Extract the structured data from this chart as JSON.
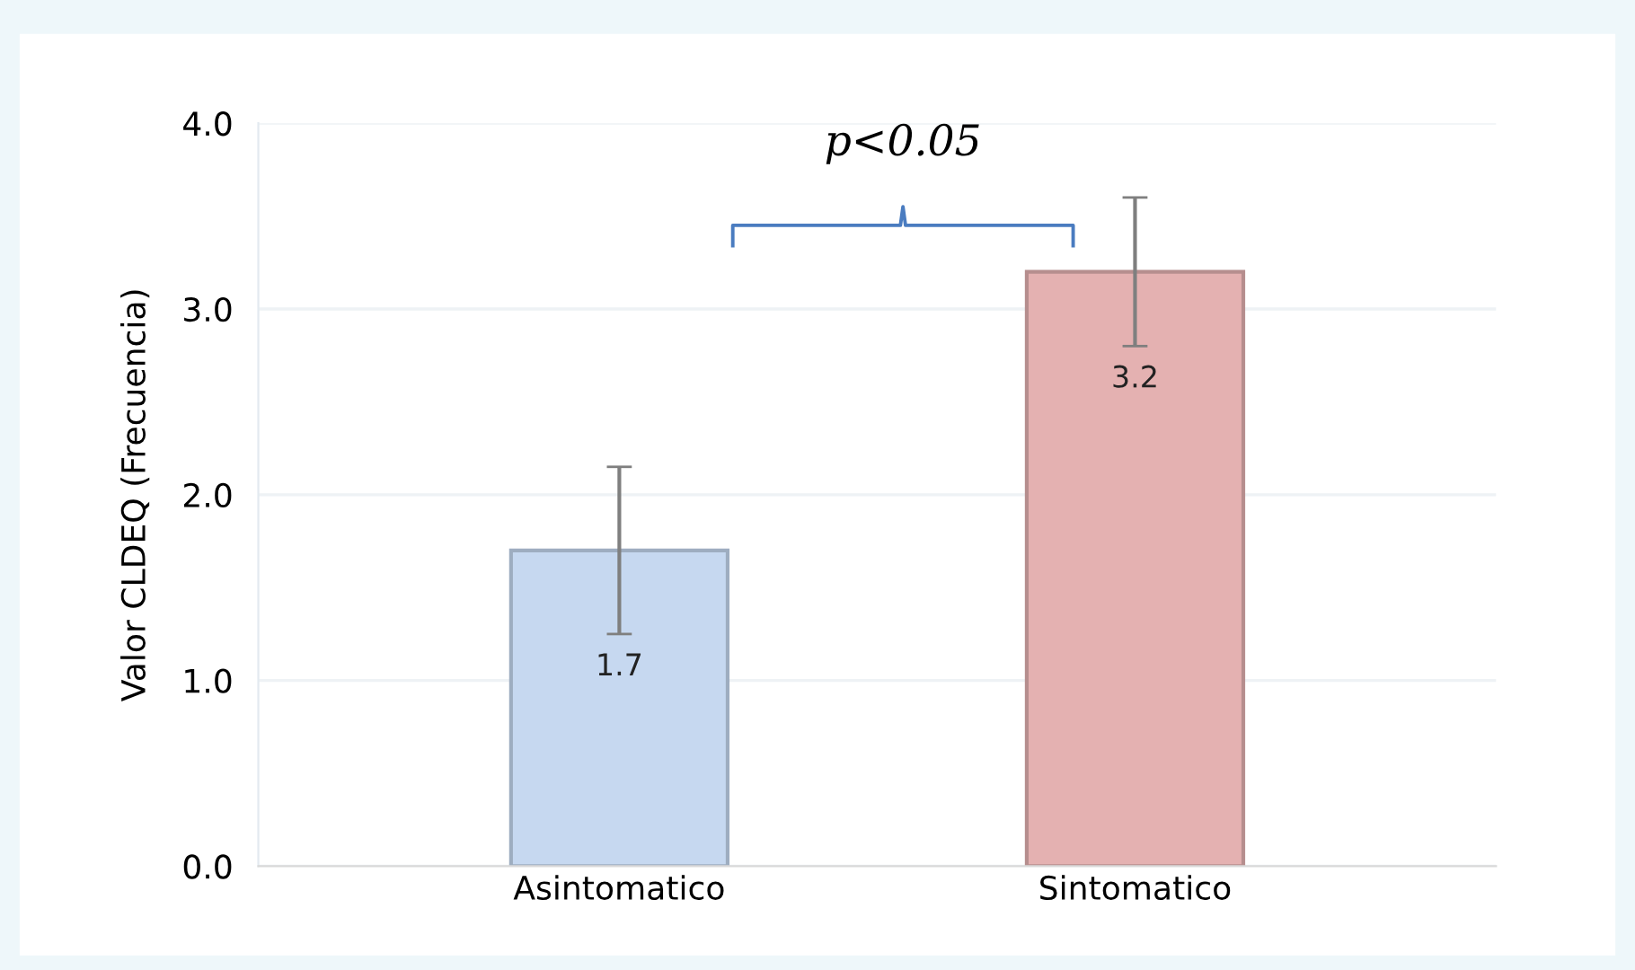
{
  "chart_data": {
    "type": "bar",
    "ylabel": "Valor CLDEQ (Frecuencia)",
    "categories": [
      "Asintomatico",
      "Sintomatico"
    ],
    "values": [
      1.7,
      3.2
    ],
    "errors": [
      0.45,
      0.4
    ],
    "colors": [
      "#c6d8f0",
      "#e4b1b1"
    ],
    "data_labels": true,
    "ylim": [
      0,
      4
    ],
    "yticks": [
      {
        "value": 0,
        "label": "0.0"
      },
      {
        "value": 1,
        "label": "1.0"
      },
      {
        "value": 2,
        "label": "2.0"
      },
      {
        "value": 3,
        "label": "3.0"
      },
      {
        "value": 4,
        "label": "4.0"
      }
    ],
    "grid": "y",
    "annotations": [
      "p<0.05"
    ]
  }
}
